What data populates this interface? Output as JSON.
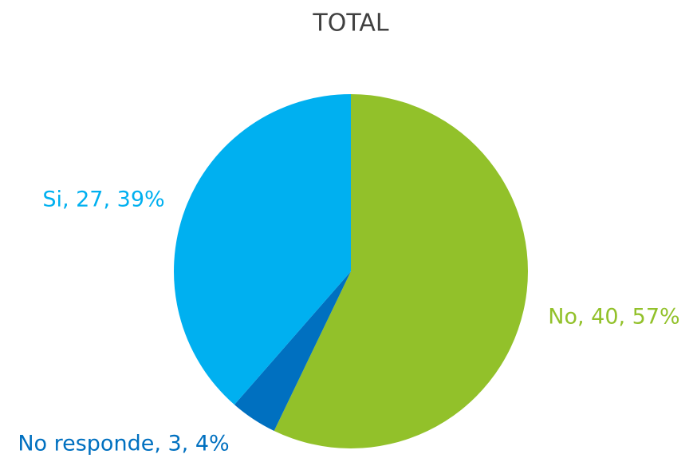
{
  "chart_data": {
    "type": "pie",
    "title": "TOTAL",
    "categories": [
      "No",
      "No responde",
      "Si"
    ],
    "values": [
      40,
      3,
      27
    ],
    "value_labels": [
      "No, 40, 57%",
      "No responde, 3, 4%",
      "Si, 27, 39%"
    ],
    "colors": [
      "#92c12a",
      "#0070c0",
      "#00b0f0"
    ]
  }
}
